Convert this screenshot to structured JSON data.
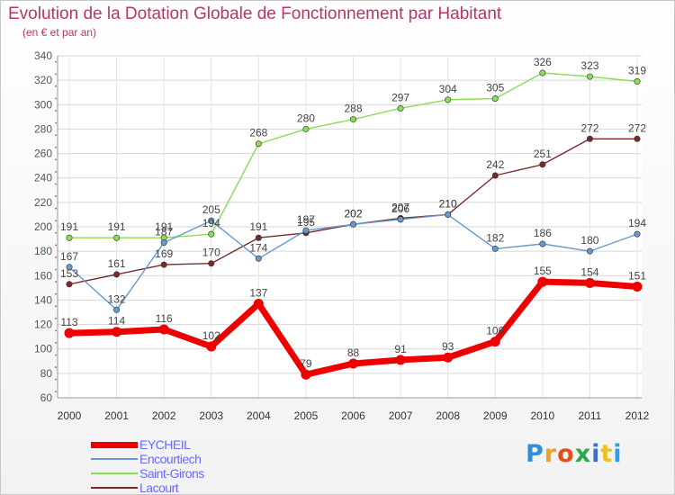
{
  "header": {
    "title": "Evolution de la Dotation Globale de Fonctionnement par Habitant",
    "subtitle": "(en € et par an)"
  },
  "logo": {
    "letters": [
      "P",
      "r",
      "o",
      "x",
      "i",
      "t",
      "i"
    ],
    "colors": [
      "#2f8fd8",
      "#f0a020",
      "#e84c1c",
      "#2aa84a",
      "#3a6fd8",
      "#f0c020",
      "#2f9fe0"
    ]
  },
  "chart_data": {
    "type": "line",
    "title": "Evolution de la Dotation Globale de Fonctionnement par Habitant",
    "subtitle": "(en € et par an)",
    "xlabel": "",
    "ylabel": "",
    "categories": [
      "2000",
      "2001",
      "2002",
      "2003",
      "2004",
      "2005",
      "2006",
      "2007",
      "2008",
      "2009",
      "2010",
      "2011",
      "2012"
    ],
    "ylim": [
      60,
      340
    ],
    "yticks": [
      60,
      80,
      100,
      120,
      140,
      160,
      180,
      200,
      220,
      240,
      260,
      280,
      300,
      320,
      340
    ],
    "grid": true,
    "legend_position": "bottom-left",
    "series": [
      {
        "name": "EYCHEIL",
        "color": "#ee0000",
        "values": [
          113,
          114,
          116,
          102,
          137,
          79,
          88,
          91,
          93,
          106,
          155,
          154,
          151
        ]
      },
      {
        "name": "Encourtiech",
        "color": "#6699cc",
        "values": [
          167,
          132,
          187,
          205,
          174,
          197,
          202,
          206,
          210,
          182,
          186,
          180,
          194
        ]
      },
      {
        "name": "Saint-Girons",
        "color": "#88dd55",
        "values": [
          191,
          191,
          191,
          194,
          268,
          280,
          288,
          297,
          304,
          305,
          326,
          323,
          319
        ]
      },
      {
        "name": "Lacourt",
        "color": "#7a2a2a",
        "values": [
          153,
          161,
          169,
          170,
          191,
          195,
          202,
          207,
          210,
          242,
          251,
          272,
          272
        ]
      }
    ]
  }
}
